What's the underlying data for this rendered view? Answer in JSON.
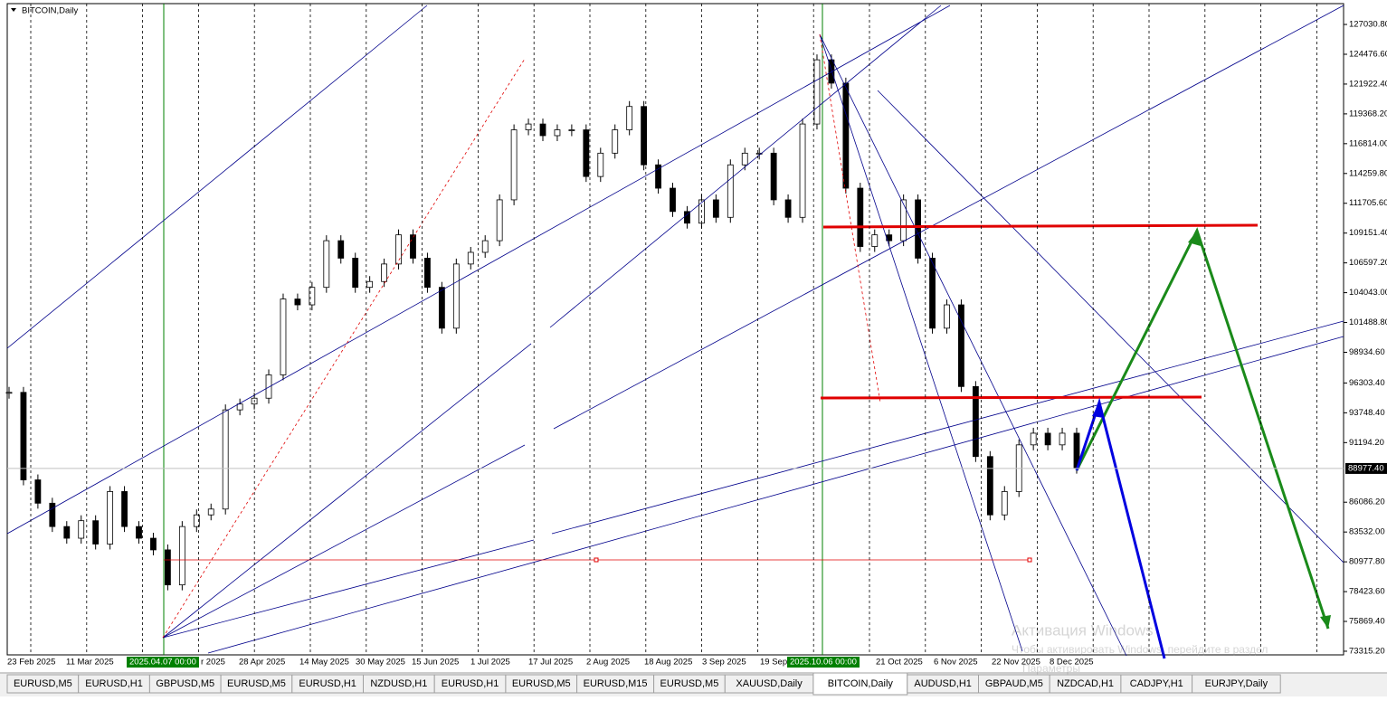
{
  "window": {
    "symbol_label": "BITCOIN,Daily",
    "tabs": [
      "EURUSD,M5",
      "EURUSD,H1",
      "GBPUSD,M5",
      "EURUSD,M5",
      "EURUSD,H1",
      "NZDUSD,H1",
      "EURUSD,H1",
      "EURUSD,M5",
      "EURUSD,M15",
      "EURUSD,M5",
      "XAUUSD,Daily",
      "BITCOIN,Daily",
      "AUDUSD,H1",
      "GBPAUD,M5",
      "NZDCAD,H1",
      "CADJPY,H1",
      "EURJPY,Daily"
    ],
    "active_tab": 11,
    "watermark": [
      "Активация Windows",
      "Чтобы активировать Windows, перейдите в раздел",
      "Параметры"
    ]
  },
  "chart_data": {
    "type": "candlestick",
    "closes": [
      95500,
      88000,
      86000,
      84000,
      83000,
      84500,
      82500,
      87000,
      84000,
      83000,
      82000,
      79000,
      84000,
      85000,
      85500,
      94000,
      94500,
      95000,
      97000,
      103500,
      103000,
      104500,
      108500,
      107000,
      104500,
      105000,
      106500,
      109000,
      107000,
      104500,
      101000,
      106500,
      107500,
      108500,
      112000,
      118000,
      118500,
      117500,
      118000,
      118000,
      114000,
      116000,
      118000,
      120000,
      115000,
      113000,
      111000,
      110000,
      112000,
      110500,
      115000,
      116000,
      116000,
      112000,
      110500,
      118500,
      124000,
      122000,
      113000,
      108000,
      109000,
      108500,
      112000,
      107000,
      101000,
      103000,
      96000,
      90000,
      85000,
      87000,
      91000,
      92000,
      91000,
      92000,
      89000
    ],
    "x_labels": [
      "23 Feb 2025",
      "11 Mar 2025",
      "2025.04.07 00:00",
      "r 2025",
      "28 Apr 2025",
      "14 May 2025",
      "30 May 2025",
      "15 Jun 2025",
      "1 Jul 2025",
      "17 Jul 2025",
      "2 Aug 2025",
      "18 Aug 2025",
      "3 Sep 2025",
      "19 Sep",
      "2025.10.06 00:00",
      "21 Oct 2025",
      "6 Nov 2025",
      "22 Nov 2025",
      "8 Dec 2025"
    ],
    "highlighted_labels": [
      2,
      14
    ],
    "ylim": [
      71607,
      129127
    ],
    "yticks": [
      {
        "value": 127030.8,
        "label": "127030.80"
      },
      {
        "value": 124476.6,
        "label": "124476.60"
      },
      {
        "value": 121922.4,
        "label": "121922.40"
      },
      {
        "value": 119368.2,
        "label": "119368.20"
      },
      {
        "value": 116814,
        "label": "116814.00"
      },
      {
        "value": 114259.8,
        "label": "114259.80"
      },
      {
        "value": 111705.6,
        "label": "111705.60"
      },
      {
        "value": 109151.4,
        "label": "109151.40"
      },
      {
        "value": 106597.2,
        "label": "106597.20"
      },
      {
        "value": 104043,
        "label": "104043.00"
      },
      {
        "value": 101488.8,
        "label": "101488.80"
      },
      {
        "value": 98934.6,
        "label": "98934.60"
      },
      {
        "value": 96303.4,
        "label": "96303.40"
      },
      {
        "value": 93748.4,
        "label": "93748.40"
      },
      {
        "value": 91194.2,
        "label": "91194.20"
      },
      {
        "value": 86086.2,
        "label": "86086.20"
      },
      {
        "value": 83532,
        "label": "83532.00"
      },
      {
        "value": 80977.8,
        "label": "80977.80"
      },
      {
        "value": 78423.6,
        "label": "78423.60"
      },
      {
        "value": 75869.4,
        "label": "75869.40"
      },
      {
        "value": 73315.2,
        "label": "73315.20"
      }
    ],
    "current_price": {
      "value": 88977.4,
      "label": "88977.40"
    }
  }
}
